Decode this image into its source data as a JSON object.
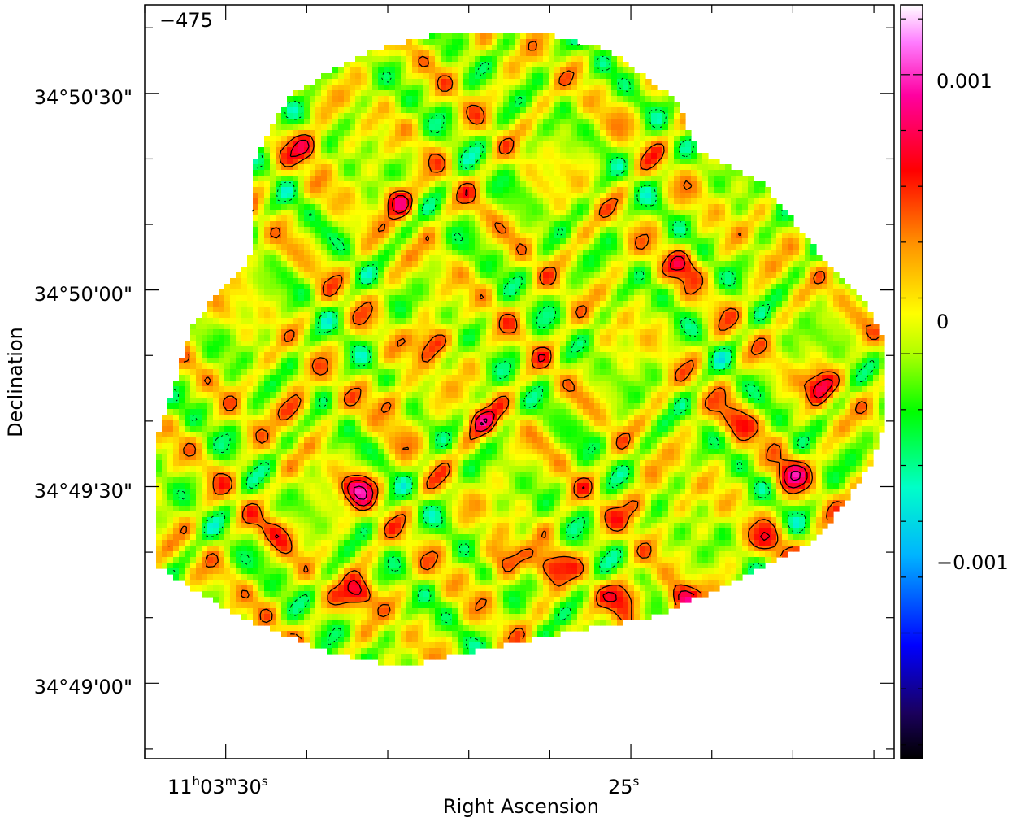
{
  "chart_data": {
    "type": "heatmap",
    "title": "",
    "panel_label": "−475",
    "xlabel": "Right Ascension",
    "ylabel": "Declination",
    "x_ticks": [
      {
        "h": "11",
        "m": "03",
        "s": "30",
        "sec": 30
      },
      {
        "h": "",
        "m": "",
        "s": "25",
        "sec": 25
      }
    ],
    "x_range_sec": [
      31.0,
      21.75
    ],
    "y_ticks": [
      {
        "label": "34°50'30\"",
        "arcsec": 90
      },
      {
        "label": "34°50'00\"",
        "arcsec": 60
      },
      {
        "label": "34°49'30\"",
        "arcsec": 30
      },
      {
        "label": "34°49'00\"",
        "arcsec": 0
      }
    ],
    "y_range_arcsec": [
      -11.5,
      103.5
    ],
    "colorbar": {
      "colormap": "rainbow",
      "range": [
        -0.00145,
        0.00125
      ],
      "ticks": [
        {
          "label": "0.001",
          "value": 0.001
        },
        {
          "label": "0",
          "value": 0
        },
        {
          "label": "−0.001",
          "value": -0.001
        }
      ]
    },
    "blobs": [
      {
        "ra": 28.35,
        "dec": 29.5,
        "amp": 1.0
      },
      {
        "ra": 27.45,
        "dec": 52.0,
        "amp": 0.8
      },
      {
        "ra": 28.35,
        "dec": 13.5,
        "amp": 1.0
      },
      {
        "ra": 26.6,
        "dec": 19.0,
        "amp": 0.7
      },
      {
        "ra": 24.35,
        "dec": 12.5,
        "amp": 0.95
      },
      {
        "ra": 25.05,
        "dec": 13.5,
        "amp": 0.9
      },
      {
        "ra": 26.0,
        "dec": 18.0,
        "amp": 0.9
      },
      {
        "ra": 27.85,
        "dec": 73.5,
        "amp": 0.9
      },
      {
        "ra": 26.85,
        "dec": 40.0,
        "amp": 0.75
      },
      {
        "ra": 25.8,
        "dec": 3.0,
        "amp": 0.85
      },
      {
        "ra": 22.65,
        "dec": 45.5,
        "amp": 0.9
      },
      {
        "ra": 23.05,
        "dec": 32.0,
        "amp": 0.85
      },
      {
        "ra": 23.25,
        "dec": 21.5,
        "amp": 0.65
      },
      {
        "ra": 24.35,
        "dec": 64.0,
        "amp": 0.7
      },
      {
        "ra": 23.7,
        "dec": 40.0,
        "amp": 0.6
      },
      {
        "ra": 28.95,
        "dec": 82.0,
        "amp": 0.75
      },
      {
        "ra": 24.9,
        "dec": 27.0,
        "amp": 0.6
      },
      {
        "ra": 27.9,
        "dec": 43.5,
        "amp": 0.65
      },
      {
        "ra": 29.15,
        "dec": 42.0,
        "amp": 0.6
      },
      {
        "ra": 29.35,
        "dec": 23.0,
        "amp": 0.55
      }
    ],
    "region_boundary": [
      [
        26.15,
        99.5
      ],
      [
        25.25,
        96.5
      ],
      [
        24.45,
        89.0
      ],
      [
        24.15,
        81.0
      ],
      [
        23.35,
        76.0
      ],
      [
        22.7,
        66.0
      ],
      [
        22.15,
        59.0
      ],
      [
        21.85,
        52.0
      ],
      [
        21.85,
        40.0
      ],
      [
        22.05,
        33.0
      ],
      [
        22.7,
        22.0
      ],
      [
        23.8,
        15.0
      ],
      [
        24.75,
        10.0
      ],
      [
        25.7,
        8.0
      ],
      [
        26.9,
        5.0
      ],
      [
        27.85,
        2.5
      ],
      [
        28.8,
        5.0
      ],
      [
        29.9,
        10.5
      ],
      [
        30.85,
        18.0
      ],
      [
        30.85,
        37.0
      ],
      [
        30.4,
        55.0
      ],
      [
        29.7,
        65.0
      ],
      [
        29.65,
        80.0
      ],
      [
        29.2,
        90.0
      ],
      [
        28.2,
        96.5
      ],
      [
        27.2,
        99.5
      ]
    ]
  }
}
